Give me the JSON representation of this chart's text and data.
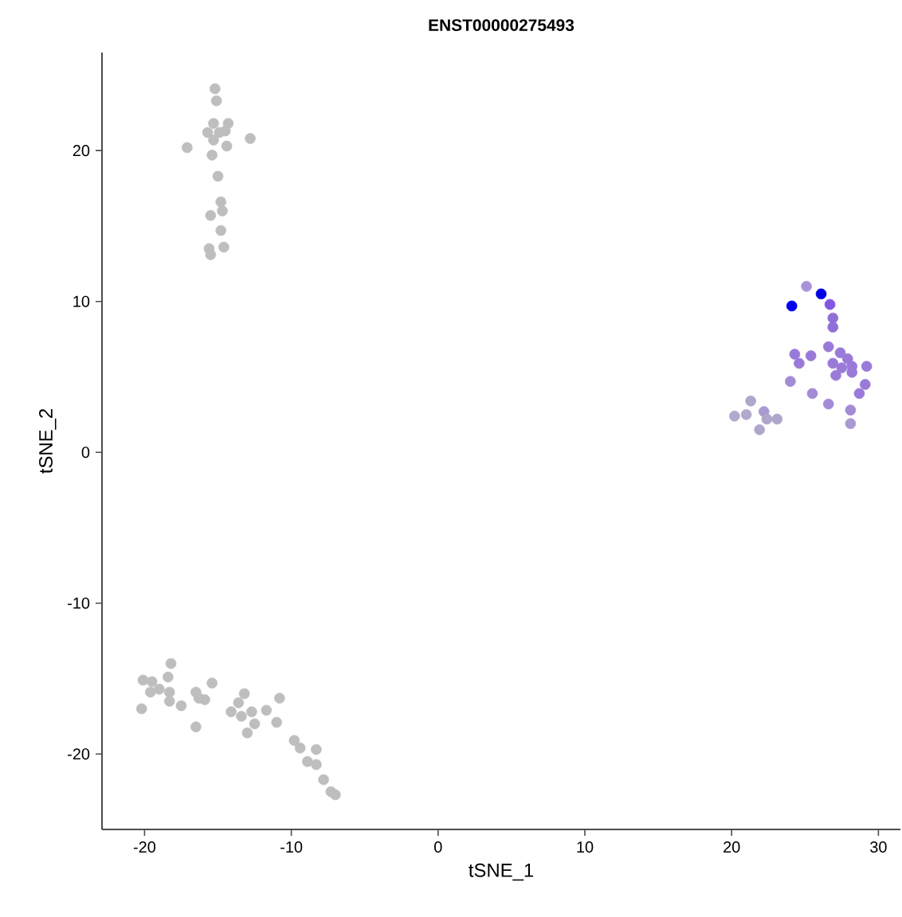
{
  "chart_data": {
    "type": "scatter",
    "title": "ENST00000275493",
    "xlabel": "tSNE_1",
    "ylabel": "tSNE_2",
    "xlim": [
      -22.9,
      31.5
    ],
    "ylim": [
      -25,
      26.5
    ],
    "xticks": [
      -20,
      -10,
      0,
      10,
      20,
      30
    ],
    "yticks": [
      -20,
      -10,
      0,
      10,
      20
    ],
    "x": [
      -15.2,
      -15.1,
      -15.3,
      -14.3,
      -15.7,
      -14.9,
      -17.1,
      -12.8,
      -15.4,
      -14.4,
      -15.0,
      -14.8,
      -15.5,
      -14.8,
      -15.6,
      -14.6,
      -15.5,
      -14.7,
      -15.3,
      -14.5,
      -18.2,
      -20.1,
      -19.5,
      -18.4,
      -19.6,
      -20.2,
      -18.3,
      -18.3,
      -17.5,
      -16.5,
      -15.4,
      -15.9,
      -16.5,
      -16.3,
      -13.2,
      -13.6,
      -14.1,
      -13.4,
      -12.7,
      -11.7,
      -10.8,
      -11.0,
      -12.5,
      -13.0,
      -9.8,
      -9.4,
      -8.3,
      -8.9,
      -8.3,
      -7.8,
      -7.3,
      -7.0,
      -19.0,
      25.1,
      26.1,
      24.1,
      26.7,
      26.9,
      26.9,
      26.6,
      27.4,
      27.9,
      26.9,
      27.5,
      28.2,
      29.2,
      27.1,
      28.2,
      24.3,
      25.4,
      24.6,
      24.0,
      29.1,
      28.7,
      25.5,
      26.6,
      28.1,
      28.1,
      21.3,
      20.2,
      21.0,
      22.2,
      23.1,
      21.9,
      22.4
    ],
    "values": [
      24.1,
      23.3,
      21.8,
      21.8,
      21.2,
      21.2,
      20.2,
      20.8,
      19.7,
      20.3,
      18.3,
      16.6,
      15.7,
      14.7,
      13.5,
      13.6,
      13.1,
      16.0,
      20.7,
      21.3,
      -14.0,
      -15.1,
      -15.2,
      -14.9,
      -15.9,
      -17.0,
      -15.9,
      -16.5,
      -16.8,
      -15.9,
      -15.3,
      -16.4,
      -18.2,
      -16.3,
      -16.0,
      -16.6,
      -17.2,
      -17.5,
      -17.2,
      -17.1,
      -16.3,
      -17.9,
      -18.0,
      -18.6,
      -19.1,
      -19.6,
      -19.7,
      -20.5,
      -20.7,
      -21.7,
      -22.5,
      -22.7,
      -15.7,
      11.0,
      10.5,
      9.7,
      9.8,
      8.9,
      8.3,
      7.0,
      6.6,
      6.2,
      5.9,
      5.6,
      5.7,
      5.7,
      5.1,
      5.3,
      6.5,
      6.4,
      5.9,
      4.7,
      4.5,
      3.9,
      3.9,
      3.2,
      2.8,
      1.9,
      3.4,
      2.4,
      2.5,
      2.7,
      2.2,
      1.5,
      2.2
    ],
    "colors": [
      "#bebebe",
      "#bebebe",
      "#bebebe",
      "#bebebe",
      "#bebebe",
      "#bebebe",
      "#bebebe",
      "#bebebe",
      "#bebebe",
      "#bebebe",
      "#bebebe",
      "#bebebe",
      "#bebebe",
      "#bebebe",
      "#bebebe",
      "#bebebe",
      "#bebebe",
      "#bebebe",
      "#bebebe",
      "#bebebe",
      "#bebebe",
      "#bebebe",
      "#bebebe",
      "#bebebe",
      "#bebebe",
      "#bebebe",
      "#bebebe",
      "#bebebe",
      "#bebebe",
      "#bebebe",
      "#bebebe",
      "#bebebe",
      "#bebebe",
      "#bebebe",
      "#bebebe",
      "#bebebe",
      "#bebebe",
      "#bebebe",
      "#bebebe",
      "#bebebe",
      "#bebebe",
      "#bebebe",
      "#bebebe",
      "#bebebe",
      "#bebebe",
      "#bebebe",
      "#bebebe",
      "#bebebe",
      "#bebebe",
      "#bebebe",
      "#bebebe",
      "#bebebe",
      "#bebebe",
      "#a993d8",
      "#0000e6",
      "#0000ee",
      "#8258e2",
      "#9070d8",
      "#9070d8",
      "#9a7ad8",
      "#9a7ad8",
      "#9a7ad8",
      "#9a7ad8",
      "#9a7ad8",
      "#9a7ad8",
      "#9a7ad8",
      "#9a7ad8",
      "#9a7ad8",
      "#9a7ad8",
      "#9a7ad8",
      "#9a7ad8",
      "#a38bd6",
      "#9a7ad8",
      "#9a7ad8",
      "#a38bd6",
      "#a38bd6",
      "#a38bd6",
      "#a899d2",
      "#b0a6cc",
      "#b3a9cc",
      "#b3a9cc",
      "#a899d2",
      "#b0a6cc",
      "#b0a6cc",
      "#b0a6cc"
    ]
  }
}
